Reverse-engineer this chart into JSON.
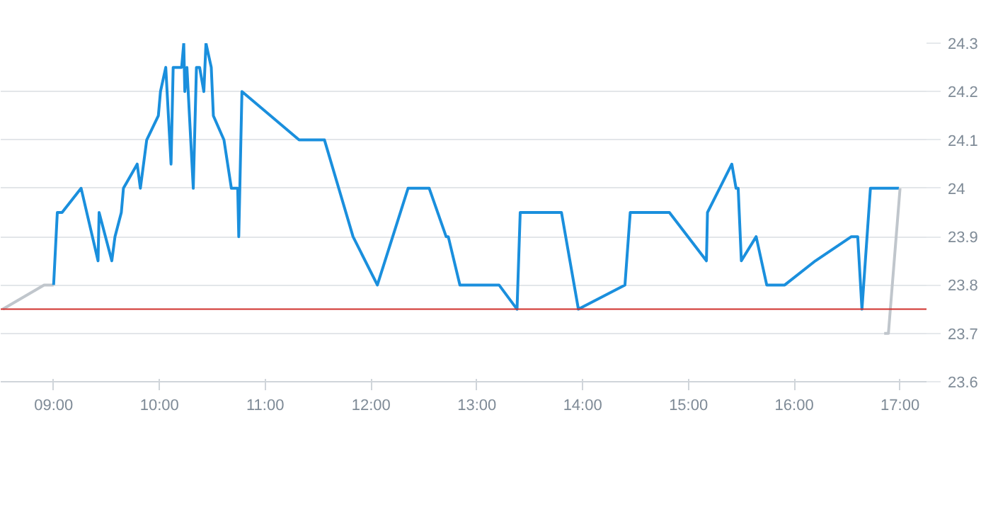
{
  "chart_data": {
    "type": "line",
    "series": [
      {
        "color": "#c0c6cc",
        "x": [
          8.52,
          8.91,
          9.0
        ],
        "values": [
          23.75,
          23.8,
          23.8
        ]
      },
      {
        "color": "#1a8fdd",
        "x": [
          9.0,
          9.035,
          9.08,
          9.26,
          9.42,
          9.43,
          9.55,
          9.58,
          9.64,
          9.66,
          9.79,
          9.82,
          9.88,
          9.99,
          10.01,
          10.06,
          10.11,
          10.13,
          10.21,
          10.23,
          10.24,
          10.26,
          10.32,
          10.35,
          10.38,
          10.42,
          10.44,
          10.49,
          10.51,
          10.61,
          10.68,
          10.74,
          10.75,
          10.78,
          11.32,
          11.56,
          11.83,
          12.06,
          12.35,
          12.55,
          12.71,
          12.73,
          12.84,
          13.21,
          13.38,
          13.41,
          13.8,
          13.88,
          13.96,
          14.4,
          14.45,
          14.82,
          15.17,
          15.18,
          15.41,
          15.45,
          15.47,
          15.5,
          15.64,
          15.74,
          15.91,
          16.2,
          16.54,
          16.6,
          16.64,
          16.72,
          16.99
        ],
        "values": [
          23.8,
          23.95,
          23.95,
          24.0,
          23.85,
          23.95,
          23.85,
          23.9,
          23.95,
          24.0,
          24.05,
          24.0,
          24.1,
          24.15,
          24.2,
          24.25,
          24.05,
          24.25,
          24.25,
          24.3,
          24.2,
          24.25,
          24.0,
          24.25,
          24.25,
          24.2,
          24.3,
          24.25,
          24.15,
          24.1,
          24.0,
          24.0,
          23.9,
          24.2,
          24.1,
          24.1,
          23.9,
          23.8,
          24.0,
          24.0,
          23.9,
          23.9,
          23.8,
          23.8,
          23.75,
          23.95,
          23.95,
          23.85,
          23.75,
          23.8,
          23.95,
          23.95,
          23.85,
          23.95,
          24.05,
          24.0,
          24.0,
          23.85,
          23.9,
          23.8,
          23.8,
          23.85,
          23.9,
          23.9,
          23.75,
          24.0,
          24.0
        ]
      },
      {
        "color": "#c0c6cc",
        "x": [
          16.85,
          16.89,
          17.0
        ],
        "values": [
          23.7,
          23.7,
          24.0
        ]
      }
    ],
    "xlim": [
      8.5,
      17.25
    ],
    "ylim": [
      23.6,
      24.3
    ],
    "xticks": [
      {
        "value": 9,
        "label": "09:00"
      },
      {
        "value": 10,
        "label": "10:00"
      },
      {
        "value": 11,
        "label": "11:00"
      },
      {
        "value": 12,
        "label": "12:00"
      },
      {
        "value": 13,
        "label": "13:00"
      },
      {
        "value": 14,
        "label": "14:00"
      },
      {
        "value": 15,
        "label": "15:00"
      },
      {
        "value": 16,
        "label": "16:00"
      },
      {
        "value": 17,
        "label": "17:00"
      }
    ],
    "yticks": [
      23.6,
      23.7,
      23.8,
      23.9,
      24,
      24.1,
      24.2,
      24.3
    ],
    "ref_lines": [
      {
        "axis": "y",
        "value": 23.75,
        "color": "#d0312d"
      }
    ],
    "grid": "y",
    "marker": "none",
    "line_style": "solid"
  }
}
